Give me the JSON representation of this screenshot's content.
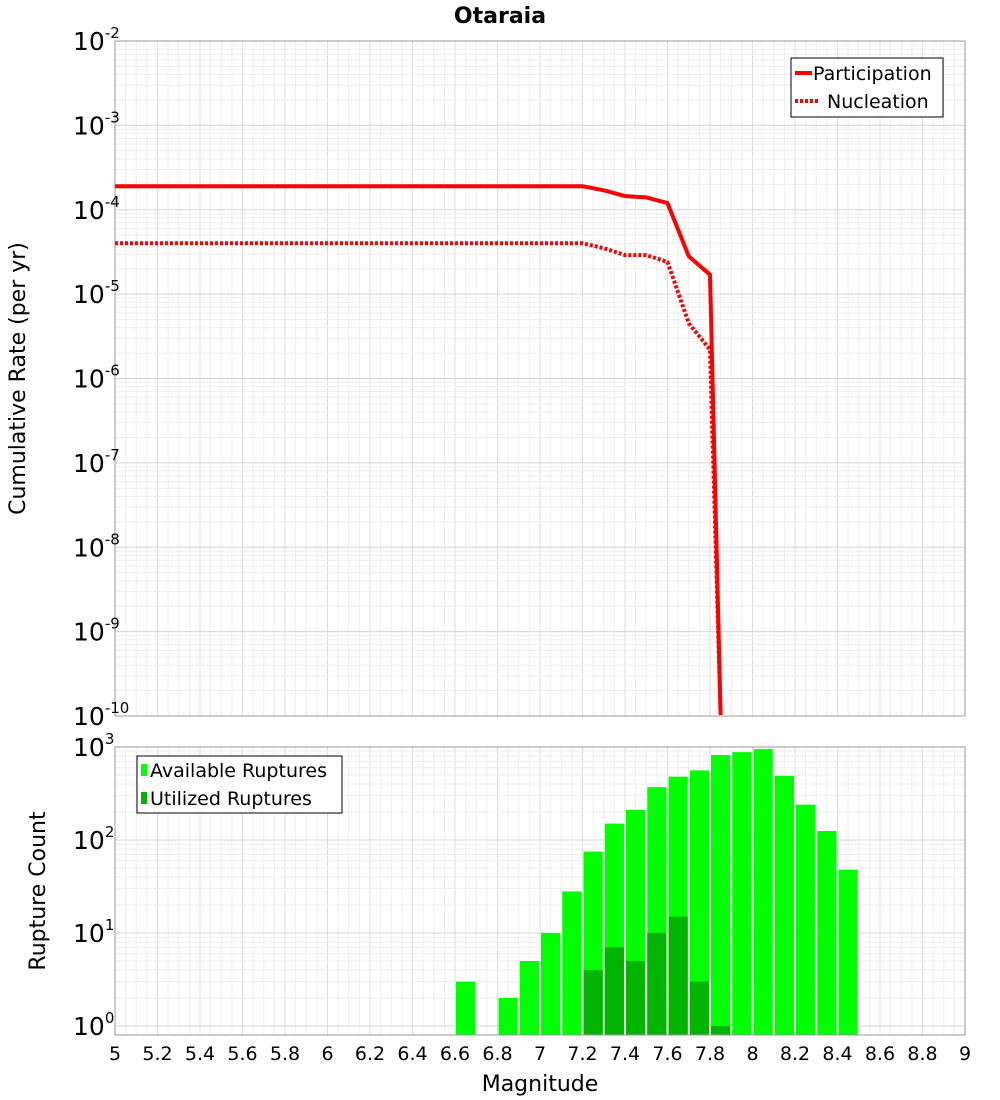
{
  "chart_data": [
    {
      "type": "line",
      "title": "Otaraia",
      "ylabel": "Cumulative Rate (per yr)",
      "xlabel": "",
      "xlim": [
        5,
        9
      ],
      "ylim": [
        1e-10,
        0.01
      ],
      "yscale": "log",
      "yticks": [
        {
          "base": "10",
          "exp": "-2"
        },
        {
          "base": "10",
          "exp": "-3"
        },
        {
          "base": "10",
          "exp": "-4"
        },
        {
          "base": "10",
          "exp": "-5"
        },
        {
          "base": "10",
          "exp": "-6"
        },
        {
          "base": "10",
          "exp": "-7"
        },
        {
          "base": "10",
          "exp": "-8"
        },
        {
          "base": "10",
          "exp": "-9"
        },
        {
          "base": "10",
          "exp": "-10"
        }
      ],
      "legend": "top-right",
      "series": [
        {
          "name": "Participation",
          "color": "#ff0000",
          "style": "solid",
          "x": [
            5.0,
            7.2,
            7.3,
            7.4,
            7.5,
            7.6,
            7.7,
            7.8,
            7.8,
            7.85
          ],
          "y": [
            0.00019,
            0.00019,
            0.00017,
            0.000145,
            0.00014,
            0.00012,
            2.8e-05,
            1.7e-05,
            1.7e-05,
            1e-10
          ]
        },
        {
          "name": "Nucleation",
          "color": "#ff0000",
          "style": "dotted",
          "x": [
            5.0,
            7.2,
            7.3,
            7.4,
            7.5,
            7.6,
            7.7,
            7.8,
            7.85
          ],
          "y": [
            4e-05,
            4e-05,
            3.5e-05,
            2.9e-05,
            2.9e-05,
            2.4e-05,
            4.5e-06,
            2.2e-06,
            1e-10
          ]
        }
      ]
    },
    {
      "type": "bar",
      "ylabel": "Rupture Count",
      "xlabel": "Magnitude",
      "xlim": [
        5,
        9
      ],
      "ylim": [
        0.8,
        1000
      ],
      "yscale": "log",
      "xticks": [
        "5",
        "5.2",
        "5.4",
        "5.6",
        "5.8",
        "6",
        "6.2",
        "6.4",
        "6.6",
        "6.8",
        "7",
        "7.2",
        "7.4",
        "7.6",
        "7.8",
        "8",
        "8.2",
        "8.4",
        "8.6",
        "8.8",
        "9"
      ],
      "yticks": [
        {
          "base": "10",
          "exp": "3"
        },
        {
          "base": "10",
          "exp": "2"
        },
        {
          "base": "10",
          "exp": "1"
        },
        {
          "base": "10",
          "exp": "0"
        }
      ],
      "legend": "top-left",
      "bin_width": 0.1,
      "series": [
        {
          "name": "Available Ruptures",
          "color": "#00ff00",
          "x": [
            6.65,
            6.85,
            6.95,
            7.05,
            7.15,
            7.25,
            7.35,
            7.45,
            7.55,
            7.65,
            7.75,
            7.85,
            7.95,
            8.05,
            8.15,
            8.25,
            8.35,
            8.45
          ],
          "values": [
            3,
            2,
            5,
            10,
            28,
            75,
            150,
            210,
            370,
            480,
            560,
            820,
            880,
            950,
            490,
            240,
            125,
            48
          ]
        },
        {
          "name": "Utilized Ruptures",
          "color": "#00b400",
          "x": [
            7.25,
            7.35,
            7.45,
            7.55,
            7.65,
            7.75,
            7.85
          ],
          "values": [
            4,
            7,
            5,
            10,
            15,
            3,
            1
          ]
        }
      ]
    }
  ]
}
